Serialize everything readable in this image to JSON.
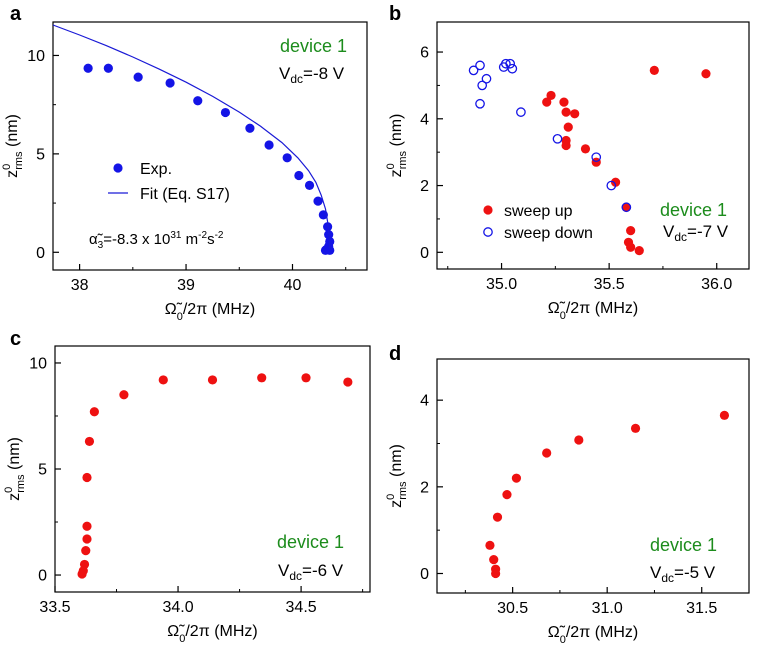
{
  "colors": {
    "exp_blue": "#1414e6",
    "fit_blue": "#1a1ad6",
    "red": "#ee1111",
    "green": "#1c8c1c"
  },
  "chart_data": [
    {
      "panel": "a",
      "type": "scatter",
      "device": "device 1",
      "vdc": "V",
      "vdc_sub": "dc",
      "vdc_value": "=-8 V",
      "xlabel": "Ω̃",
      "xlabel_sub": "0",
      "xlabel_rest": "/2π (MHz)",
      "ylabel": "z",
      "ylabel_sup": "0",
      "ylabel_sub": "rms",
      "ylabel_rest": " (nm)",
      "xlim": [
        37.75,
        40.7
      ],
      "ylim": [
        -0.9,
        11.7
      ],
      "xticks": [
        38.0,
        39.0,
        40.0
      ],
      "xtick_labels": [
        "38",
        "39",
        "40"
      ],
      "xminor": [
        38.5,
        39.5,
        40.5
      ],
      "yticks": [
        0,
        5,
        10
      ],
      "ytick_labels": [
        "0",
        "5",
        "10"
      ],
      "yminor": [
        2.5,
        7.5
      ],
      "legend": [
        {
          "label": "Exp.",
          "marker": "filled-circle"
        },
        {
          "label": "Fit (Eq. S17)",
          "marker": "line"
        }
      ],
      "annotation": {
        "sym": "α̃",
        "sub": "3",
        "mid": "=-8.3 x 10",
        "sup1": "31",
        "unit": " m",
        "sup2": "-2",
        "unit2": "s",
        "sup3": "-2"
      },
      "series": [
        {
          "name": "Exp.",
          "style": "filled",
          "color": "#1414e6",
          "x": [
            38.08,
            38.27,
            38.55,
            38.85,
            39.11,
            39.37,
            39.6,
            39.78,
            39.95,
            40.06,
            40.16,
            40.24,
            40.29,
            40.33,
            40.34,
            40.35,
            40.34,
            40.32,
            40.31,
            40.35
          ],
          "y": [
            9.35,
            9.35,
            8.9,
            8.6,
            7.7,
            7.1,
            6.3,
            5.45,
            4.8,
            3.9,
            3.4,
            2.6,
            1.9,
            1.3,
            0.9,
            0.55,
            0.3,
            0.15,
            0.1,
            0.1
          ]
        },
        {
          "name": "Fit (Eq. S17)",
          "style": "line",
          "color": "#1a1ad6",
          "x": [
            37.75,
            38.0,
            38.25,
            38.5,
            38.75,
            39.0,
            39.25,
            39.5,
            39.7,
            39.9,
            40.05,
            40.15,
            40.22,
            40.27,
            40.31,
            40.33,
            40.345,
            40.35
          ],
          "y": [
            11.55,
            11.04,
            10.5,
            9.92,
            9.3,
            8.64,
            7.92,
            7.12,
            6.4,
            5.58,
            4.8,
            4.15,
            3.55,
            2.9,
            2.2,
            1.55,
            0.85,
            0.2
          ]
        }
      ]
    },
    {
      "panel": "b",
      "type": "scatter",
      "device": "device 1",
      "vdc": "V",
      "vdc_sub": "dc",
      "vdc_value": "=-7 V",
      "xlabel": "Ω̃",
      "xlabel_sub": "0",
      "xlabel_rest": "/2π (MHz)",
      "ylabel": "z",
      "ylabel_sup": "0",
      "ylabel_sub": "rms",
      "ylabel_rest": " (nm)",
      "xlim": [
        34.7,
        36.15
      ],
      "ylim": [
        -0.5,
        6.9
      ],
      "xticks": [
        35.0,
        35.5,
        36.0
      ],
      "xtick_labels": [
        "35.0",
        "35.5",
        "36.0"
      ],
      "xminor": [
        34.75,
        35.25,
        35.75
      ],
      "yticks": [
        0,
        2,
        4,
        6
      ],
      "ytick_labels": [
        "0",
        "2",
        "4",
        "6"
      ],
      "yminor": [
        1,
        3,
        5
      ],
      "legend": [
        {
          "label": "sweep up",
          "marker": "filled-circle"
        },
        {
          "label": "sweep down",
          "marker": "open-circle"
        }
      ],
      "series": [
        {
          "name": "sweep up",
          "style": "filled",
          "color": "#ee1111",
          "x": [
            35.71,
            35.95,
            35.23,
            35.21,
            35.29,
            35.3,
            35.34,
            35.31,
            35.3,
            35.3,
            35.39,
            35.44,
            35.53,
            35.58,
            35.58,
            35.6,
            35.59,
            35.6,
            35.64
          ],
          "y": [
            5.45,
            5.35,
            4.7,
            4.5,
            4.5,
            4.2,
            4.15,
            3.75,
            3.35,
            3.2,
            3.1,
            2.7,
            2.1,
            1.35,
            1.35,
            0.65,
            0.3,
            0.15,
            0.05
          ]
        },
        {
          "name": "sweep down",
          "style": "open",
          "color": "#1414e6",
          "x": [
            34.87,
            34.9,
            34.93,
            34.91,
            34.9,
            35.01,
            35.02,
            35.04,
            35.05,
            35.09,
            35.26,
            35.44,
            35.51,
            35.58
          ],
          "y": [
            5.45,
            5.6,
            5.2,
            5.0,
            4.45,
            5.55,
            5.65,
            5.65,
            5.5,
            4.2,
            3.4,
            2.85,
            2.0,
            1.35
          ]
        }
      ]
    },
    {
      "panel": "c",
      "type": "scatter",
      "device": "device 1",
      "vdc": "V",
      "vdc_sub": "dc",
      "vdc_value": "=-6 V",
      "xlabel": "Ω̃",
      "xlabel_sub": "0",
      "xlabel_rest": "/2π (MHz)",
      "ylabel": "z",
      "ylabel_sup": "0",
      "ylabel_sub": "rms",
      "ylabel_rest": " (nm)",
      "xlim": [
        33.5,
        34.78
      ],
      "ylim": [
        -0.8,
        10.8
      ],
      "xticks": [
        33.5,
        34.0,
        34.5
      ],
      "xtick_labels": [
        "33.5",
        "34.0",
        "34.5"
      ],
      "xminor": [
        33.75,
        34.25,
        34.75
      ],
      "yticks": [
        0,
        5,
        10
      ],
      "ytick_labels": [
        "0",
        "5",
        "10"
      ],
      "yminor": [
        2.5,
        7.5
      ],
      "series": [
        {
          "name": "data",
          "style": "filled",
          "color": "#ee1111",
          "x": [
            34.69,
            34.52,
            34.34,
            34.14,
            33.94,
            33.78,
            33.66,
            33.64,
            33.63,
            33.63,
            33.63,
            33.625,
            33.62,
            33.615,
            33.61
          ],
          "y": [
            9.1,
            9.3,
            9.3,
            9.2,
            9.2,
            8.5,
            7.7,
            6.3,
            4.6,
            2.3,
            1.7,
            1.15,
            0.5,
            0.2,
            0.05
          ]
        }
      ]
    },
    {
      "panel": "d",
      "type": "scatter",
      "device": "device 1",
      "vdc": "V",
      "vdc_sub": "dc",
      "vdc_value": "=-5 V",
      "xlabel": "Ω̃",
      "xlabel_sub": "0",
      "xlabel_rest": "/2π (MHz)",
      "ylabel": "z",
      "ylabel_sup": "0",
      "ylabel_sub": "rms",
      "ylabel_rest": " (nm)",
      "xlim": [
        30.1,
        31.75
      ],
      "ylim": [
        -0.45,
        4.95
      ],
      "xticks": [
        30.5,
        31.0,
        31.5
      ],
      "xtick_labels": [
        "30.5",
        "31.0",
        "31.5"
      ],
      "xminor": [
        30.25,
        30.75,
        31.25
      ],
      "yticks": [
        0,
        2,
        4
      ],
      "ytick_labels": [
        "0",
        "2",
        "4"
      ],
      "yminor": [
        1,
        3
      ],
      "series": [
        {
          "name": "data",
          "style": "filled",
          "color": "#ee1111",
          "x": [
            31.62,
            31.15,
            30.85,
            30.68,
            30.52,
            30.47,
            30.42,
            30.38,
            30.4,
            30.41,
            30.41
          ],
          "y": [
            3.65,
            3.35,
            3.08,
            2.78,
            2.2,
            1.82,
            1.3,
            0.65,
            0.32,
            0.1,
            0.0
          ]
        }
      ]
    }
  ]
}
